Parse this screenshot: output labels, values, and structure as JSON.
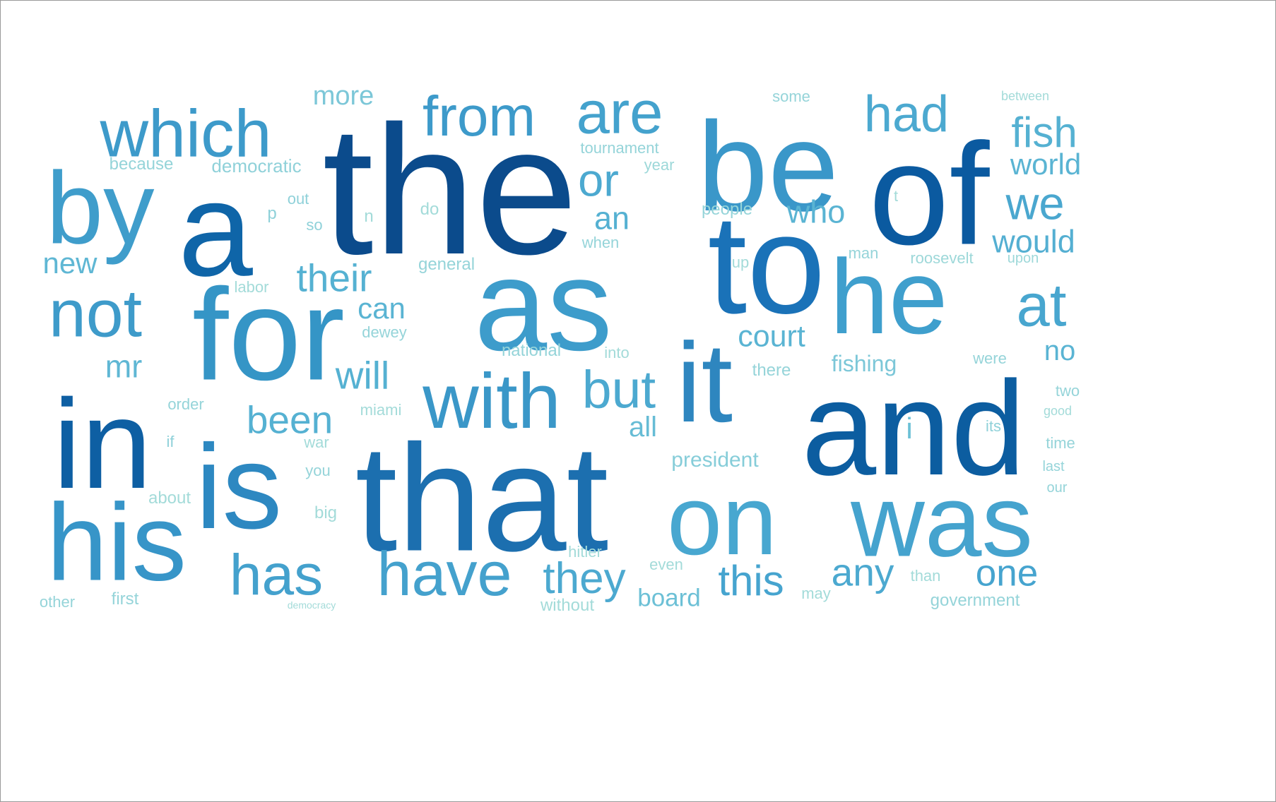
{
  "words": [
    {
      "text": "the",
      "color": "#0b4b8c"
    },
    {
      "text": "a",
      "color": "#0f65a8"
    },
    {
      "text": "be",
      "color": "#3a97c9"
    },
    {
      "text": "of",
      "color": "#0b5aa0"
    },
    {
      "text": "to",
      "color": "#1a72b8"
    },
    {
      "text": "as",
      "color": "#3d9ccb"
    },
    {
      "text": "by",
      "color": "#3f9dcb"
    },
    {
      "text": "for",
      "color": "#3595c6"
    },
    {
      "text": "in",
      "color": "#0e5fa3"
    },
    {
      "text": "is",
      "color": "#2d88c1"
    },
    {
      "text": "that",
      "color": "#1c6faf"
    },
    {
      "text": "and",
      "color": "#0c5da0"
    },
    {
      "text": "it",
      "color": "#2e86bf"
    },
    {
      "text": "he",
      "color": "#3f9fcd"
    },
    {
      "text": "his",
      "color": "#3795c8"
    },
    {
      "text": "on",
      "color": "#48a7d0"
    },
    {
      "text": "was",
      "color": "#45a3ce"
    },
    {
      "text": "which",
      "color": "#3d9aca"
    },
    {
      "text": "from",
      "color": "#3d9aca"
    },
    {
      "text": "are",
      "color": "#44a2cd"
    },
    {
      "text": "had",
      "color": "#4ca9d0"
    },
    {
      "text": "fish",
      "color": "#55b1d2"
    },
    {
      "text": "world",
      "color": "#5ab4d3"
    },
    {
      "text": "we",
      "color": "#4aa7cf"
    },
    {
      "text": "would",
      "color": "#54afd2"
    },
    {
      "text": "at",
      "color": "#48a6cf"
    },
    {
      "text": "not",
      "color": "#3e9bca"
    },
    {
      "text": "with",
      "color": "#3a97c8"
    },
    {
      "text": "have",
      "color": "#44a1cd"
    },
    {
      "text": "has",
      "color": "#44a1cd"
    },
    {
      "text": "they",
      "color": "#4ca9d0"
    },
    {
      "text": "this",
      "color": "#46a4cf"
    },
    {
      "text": "any",
      "color": "#4ca9d0"
    },
    {
      "text": "one",
      "color": "#46a4cf"
    },
    {
      "text": "but",
      "color": "#4ca9d0"
    },
    {
      "text": "or",
      "color": "#4ca9d0"
    },
    {
      "text": "an",
      "color": "#55b1d2"
    },
    {
      "text": "who",
      "color": "#5ab4d3"
    },
    {
      "text": "their",
      "color": "#55b1d2"
    },
    {
      "text": "will",
      "color": "#55b1d2"
    },
    {
      "text": "been",
      "color": "#55b1d2"
    },
    {
      "text": "can",
      "color": "#5ab4d3"
    },
    {
      "text": "court",
      "color": "#5ab4d3"
    },
    {
      "text": "no",
      "color": "#5ab4d3"
    },
    {
      "text": "new",
      "color": "#5fb7d4"
    },
    {
      "text": "mr",
      "color": "#5fb7d4"
    },
    {
      "text": "more",
      "color": "#7cc7d8"
    },
    {
      "text": "all",
      "color": "#66bcd5"
    },
    {
      "text": "i",
      "color": "#6cc0d6"
    },
    {
      "text": "fishing",
      "color": "#7cc7d8"
    },
    {
      "text": "board",
      "color": "#6cc0d6"
    },
    {
      "text": "president",
      "color": "#86cdd9"
    },
    {
      "text": "some",
      "color": "#95d4d9"
    },
    {
      "text": "between",
      "color": "#a3dbd9"
    },
    {
      "text": "tournament",
      "color": "#95d4d9"
    },
    {
      "text": "year",
      "color": "#9dd8d9"
    },
    {
      "text": "because",
      "color": "#95d4d9"
    },
    {
      "text": "democratic",
      "color": "#8fd1d9"
    },
    {
      "text": "people",
      "color": "#95d4d9"
    },
    {
      "text": "out",
      "color": "#8fd1d9"
    },
    {
      "text": "p",
      "color": "#8fd1d9"
    },
    {
      "text": "do",
      "color": "#a3dbd9"
    },
    {
      "text": "so",
      "color": "#8fd1d9"
    },
    {
      "text": "n",
      "color": "#a3dbd9"
    },
    {
      "text": "t",
      "color": "#a3dbd9"
    },
    {
      "text": "when",
      "color": "#95d4d9"
    },
    {
      "text": "man",
      "color": "#95d4d9"
    },
    {
      "text": "roosevelt",
      "color": "#9dd8d9"
    },
    {
      "text": "upon",
      "color": "#9dd8d9"
    },
    {
      "text": "up",
      "color": "#a3dbd9"
    },
    {
      "text": "general",
      "color": "#95d4d9"
    },
    {
      "text": "labor",
      "color": "#a3dbd9"
    },
    {
      "text": "dewey",
      "color": "#95d4d9"
    },
    {
      "text": "national",
      "color": "#95d4d9"
    },
    {
      "text": "into",
      "color": "#a3dbd9"
    },
    {
      "text": "there",
      "color": "#95d4d9"
    },
    {
      "text": "were",
      "color": "#95d4d9"
    },
    {
      "text": "two",
      "color": "#95d4d9"
    },
    {
      "text": "good",
      "color": "#a3dbd9"
    },
    {
      "text": "order",
      "color": "#95d4d9"
    },
    {
      "text": "miami",
      "color": "#a3dbd9"
    },
    {
      "text": "its",
      "color": "#8fd1d9"
    },
    {
      "text": "time",
      "color": "#95d4d9"
    },
    {
      "text": "if",
      "color": "#8fd1d9"
    },
    {
      "text": "war",
      "color": "#a3dbd9"
    },
    {
      "text": "you",
      "color": "#95d4d9"
    },
    {
      "text": "last",
      "color": "#95d4d9"
    },
    {
      "text": "our",
      "color": "#95d4d9"
    },
    {
      "text": "about",
      "color": "#a3dbd9"
    },
    {
      "text": "big",
      "color": "#a3dbd9"
    },
    {
      "text": "hitler",
      "color": "#a3dbd9"
    },
    {
      "text": "even",
      "color": "#a3dbd9"
    },
    {
      "text": "than",
      "color": "#a3dbd9"
    },
    {
      "text": "may",
      "color": "#a3dbd9"
    },
    {
      "text": "government",
      "color": "#95d4d9"
    },
    {
      "text": "other",
      "color": "#95d4d9"
    },
    {
      "text": "first",
      "color": "#95d4d9"
    },
    {
      "text": "democracy",
      "color": "#a3dbd9"
    },
    {
      "text": "without",
      "color": "#a3dbd9"
    }
  ]
}
